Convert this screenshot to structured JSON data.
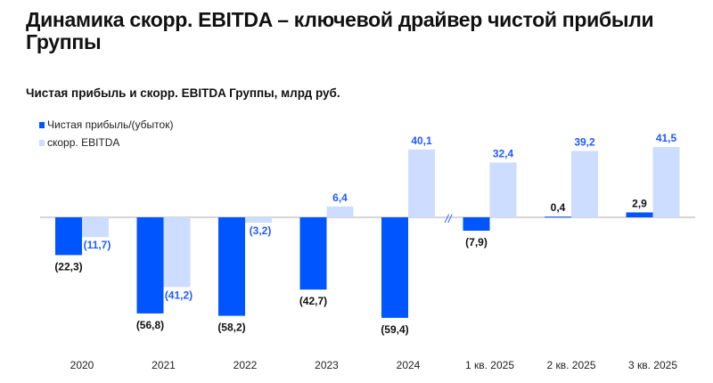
{
  "title": "Динамика скорр. EBITDA – ключевой драйвер чистой прибыли Группы",
  "subtitle": "Чистая прибыль и скорр. EBITDA Группы, млрд руб.",
  "colors": {
    "net_profit": "#0055FF",
    "ebitda": "#CCDDFF",
    "ebitda_label": "#1F5CFF",
    "net_label": "#111111",
    "axis": "#C8C8C8"
  },
  "chart_data": {
    "type": "bar",
    "categories": [
      "2020",
      "2021",
      "2022",
      "2023",
      "2024",
      "1 кв. 2025",
      "2 кв. 2025",
      "3 кв. 2025"
    ],
    "series": [
      {
        "name": "Чистая прибыль/(убыток)",
        "values": [
          -22.3,
          -56.8,
          -58.2,
          -42.7,
          -59.4,
          -7.9,
          0.4,
          2.9
        ],
        "labels": [
          "(22,3)",
          "(56,8)",
          "(58,2)",
          "(42,7)",
          "(59,4)",
          "(7,9)",
          "0,4",
          "2,9"
        ]
      },
      {
        "name": "скорр. EBITDA",
        "values": [
          -11.7,
          -41.2,
          -3.2,
          6.4,
          40.1,
          32.4,
          39.2,
          41.5
        ],
        "labels": [
          "(11,7)",
          "(41,2)",
          "(3,2)",
          "6,4",
          "40,1",
          "32,4",
          "39,2",
          "41,5"
        ]
      }
    ],
    "axis_break": "//",
    "legend_placement": "top-left",
    "grid": false
  }
}
